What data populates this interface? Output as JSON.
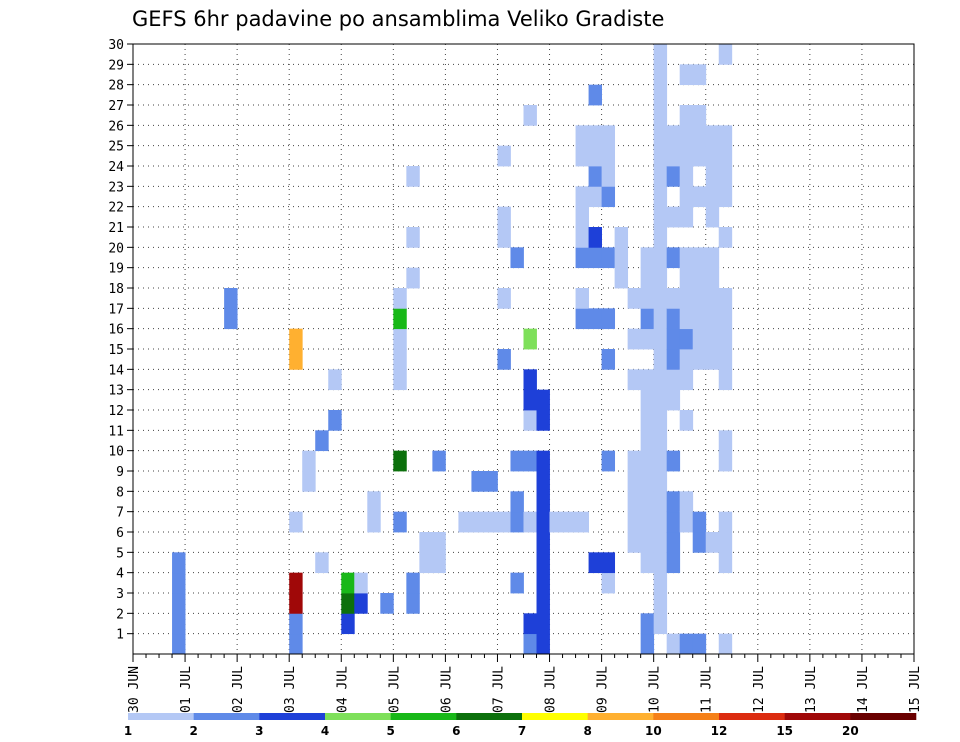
{
  "chart_data": {
    "type": "heatmap",
    "title": "GEFS 6hr padavine po ansamblima Veliko Gradiste",
    "xlabel": "",
    "ylabel": "",
    "x_tick_labels": [
      "30 JUN",
      "01 JUL",
      "02 JUL",
      "03 JUL",
      "04 JUL",
      "05 JUL",
      "06 JUL",
      "07 JUL",
      "08 JUL",
      "09 JUL",
      "10 JUL",
      "11 JUL",
      "12 JUL",
      "13 JUL",
      "14 JUL",
      "15 JUL"
    ],
    "y_tick_labels": [
      "1",
      "2",
      "3",
      "4",
      "5",
      "6",
      "7",
      "8",
      "9",
      "10",
      "11",
      "12",
      "13",
      "14",
      "15",
      "16",
      "17",
      "18",
      "19",
      "20",
      "21",
      "22",
      "23",
      "24",
      "25",
      "26",
      "27",
      "28",
      "29",
      "30"
    ],
    "x_range": [
      "30 JUN 00Z",
      "15 JUL 00Z"
    ],
    "time_step_hours": 6,
    "y_range": [
      0,
      30
    ],
    "grid": "dotted",
    "colorbar": {
      "labels": [
        "1",
        "2",
        "3",
        "4",
        "5",
        "6",
        "7",
        "8",
        "10",
        "12",
        "15",
        "20"
      ],
      "colors": [
        "#b4c8f5",
        "#5f8ae8",
        "#1e40d8",
        "#7ee05a",
        "#18b818",
        "#0c700c",
        "#ffff00",
        "#ffb030",
        "#f58018",
        "#dc2c10",
        "#a00808",
        "#6a0000"
      ]
    },
    "cell_value_note": "precipitation class per 6-hour step; value = colorbar class index (1-based)",
    "cells": [
      [
        3,
        0,
        2
      ],
      [
        3,
        1,
        2
      ],
      [
        3,
        2,
        2
      ],
      [
        3,
        3,
        2
      ],
      [
        3,
        4,
        2
      ],
      [
        7,
        16,
        2
      ],
      [
        7,
        17,
        2
      ],
      [
        12,
        0,
        2
      ],
      [
        12,
        1,
        2
      ],
      [
        12,
        2,
        11
      ],
      [
        12,
        3,
        11
      ],
      [
        12,
        6,
        1
      ],
      [
        12,
        14,
        8
      ],
      [
        12,
        15,
        8
      ],
      [
        13,
        8,
        1
      ],
      [
        13,
        9,
        1
      ],
      [
        14,
        4,
        1
      ],
      [
        14,
        10,
        2
      ],
      [
        15,
        11,
        2
      ],
      [
        15,
        13,
        1
      ],
      [
        16,
        1,
        3
      ],
      [
        16,
        2,
        6
      ],
      [
        16,
        3,
        5
      ],
      [
        17,
        2,
        3
      ],
      [
        17,
        3,
        1
      ],
      [
        18,
        6,
        1
      ],
      [
        18,
        7,
        1
      ],
      [
        19,
        2,
        2
      ],
      [
        20,
        6,
        2
      ],
      [
        20,
        9,
        6
      ],
      [
        20,
        13,
        1
      ],
      [
        20,
        14,
        1
      ],
      [
        20,
        15,
        1
      ],
      [
        20,
        16,
        5
      ],
      [
        20,
        17,
        1
      ],
      [
        21,
        2,
        2
      ],
      [
        21,
        3,
        2
      ],
      [
        21,
        18,
        1
      ],
      [
        21,
        20,
        1
      ],
      [
        21,
        23,
        1
      ],
      [
        22,
        4,
        1
      ],
      [
        22,
        5,
        1
      ],
      [
        23,
        4,
        1
      ],
      [
        23,
        5,
        1
      ],
      [
        23,
        9,
        2
      ],
      [
        25,
        6,
        1
      ],
      [
        26,
        6,
        1
      ],
      [
        26,
        8,
        2
      ],
      [
        27,
        6,
        1
      ],
      [
        27,
        8,
        2
      ],
      [
        28,
        6,
        1
      ],
      [
        28,
        14,
        2
      ],
      [
        28,
        17,
        1
      ],
      [
        28,
        20,
        1
      ],
      [
        28,
        21,
        1
      ],
      [
        28,
        24,
        1
      ],
      [
        29,
        3,
        2
      ],
      [
        29,
        6,
        2
      ],
      [
        29,
        7,
        2
      ],
      [
        29,
        9,
        2
      ],
      [
        29,
        19,
        2
      ],
      [
        30,
        0,
        2
      ],
      [
        30,
        1,
        3
      ],
      [
        30,
        6,
        1
      ],
      [
        30,
        9,
        2
      ],
      [
        30,
        11,
        1
      ],
      [
        30,
        12,
        3
      ],
      [
        30,
        13,
        3
      ],
      [
        30,
        15,
        4
      ],
      [
        30,
        26,
        1
      ],
      [
        31,
        0,
        3
      ],
      [
        31,
        1,
        3
      ],
      [
        31,
        2,
        3
      ],
      [
        31,
        3,
        3
      ],
      [
        31,
        4,
        3
      ],
      [
        31,
        5,
        3
      ],
      [
        31,
        6,
        3
      ],
      [
        31,
        7,
        3
      ],
      [
        31,
        8,
        3
      ],
      [
        31,
        9,
        3
      ],
      [
        31,
        11,
        3
      ],
      [
        31,
        12,
        3
      ],
      [
        32,
        6,
        1
      ],
      [
        33,
        6,
        1
      ],
      [
        34,
        6,
        1
      ],
      [
        34,
        16,
        2
      ],
      [
        34,
        17,
        1
      ],
      [
        34,
        19,
        2
      ],
      [
        34,
        20,
        1
      ],
      [
        34,
        21,
        1
      ],
      [
        34,
        22,
        1
      ],
      [
        34,
        24,
        1
      ],
      [
        34,
        25,
        1
      ],
      [
        35,
        4,
        3
      ],
      [
        35,
        16,
        2
      ],
      [
        35,
        19,
        2
      ],
      [
        35,
        20,
        3
      ],
      [
        35,
        22,
        1
      ],
      [
        35,
        23,
        2
      ],
      [
        35,
        24,
        1
      ],
      [
        35,
        25,
        1
      ],
      [
        35,
        27,
        2
      ],
      [
        36,
        3,
        1
      ],
      [
        36,
        4,
        3
      ],
      [
        36,
        9,
        2
      ],
      [
        36,
        14,
        2
      ],
      [
        36,
        16,
        2
      ],
      [
        36,
        19,
        2
      ],
      [
        36,
        22,
        2
      ],
      [
        36,
        23,
        1
      ],
      [
        36,
        24,
        1
      ],
      [
        36,
        25,
        1
      ],
      [
        37,
        18,
        1
      ],
      [
        37,
        19,
        1
      ],
      [
        37,
        20,
        1
      ],
      [
        38,
        5,
        1
      ],
      [
        38,
        6,
        1
      ],
      [
        38,
        7,
        1
      ],
      [
        38,
        8,
        1
      ],
      [
        38,
        9,
        1
      ],
      [
        38,
        13,
        1
      ],
      [
        38,
        15,
        1
      ],
      [
        38,
        17,
        1
      ],
      [
        39,
        0,
        2
      ],
      [
        39,
        1,
        2
      ],
      [
        39,
        4,
        1
      ],
      [
        39,
        5,
        1
      ],
      [
        39,
        6,
        1
      ],
      [
        39,
        7,
        1
      ],
      [
        39,
        8,
        1
      ],
      [
        39,
        9,
        1
      ],
      [
        39,
        10,
        1
      ],
      [
        39,
        11,
        1
      ],
      [
        39,
        12,
        1
      ],
      [
        39,
        13,
        1
      ],
      [
        39,
        15,
        1
      ],
      [
        39,
        16,
        2
      ],
      [
        39,
        17,
        1
      ],
      [
        39,
        18,
        1
      ],
      [
        39,
        19,
        1
      ],
      [
        40,
        1,
        1
      ],
      [
        40,
        2,
        1
      ],
      [
        40,
        3,
        1
      ],
      [
        40,
        4,
        1
      ],
      [
        40,
        5,
        1
      ],
      [
        40,
        6,
        1
      ],
      [
        40,
        7,
        1
      ],
      [
        40,
        8,
        1
      ],
      [
        40,
        9,
        1
      ],
      [
        40,
        10,
        1
      ],
      [
        40,
        11,
        1
      ],
      [
        40,
        12,
        1
      ],
      [
        40,
        13,
        1
      ],
      [
        40,
        14,
        1
      ],
      [
        40,
        15,
        1
      ],
      [
        40,
        16,
        1
      ],
      [
        40,
        17,
        1
      ],
      [
        40,
        18,
        1
      ],
      [
        40,
        19,
        1
      ],
      [
        40,
        20,
        1
      ],
      [
        40,
        21,
        1
      ],
      [
        40,
        22,
        1
      ],
      [
        40,
        23,
        1
      ],
      [
        40,
        24,
        1
      ],
      [
        40,
        25,
        1
      ],
      [
        40,
        26,
        1
      ],
      [
        40,
        27,
        1
      ],
      [
        40,
        28,
        1
      ],
      [
        40,
        29,
        1
      ],
      [
        41,
        0,
        1
      ],
      [
        41,
        4,
        2
      ],
      [
        41,
        5,
        2
      ],
      [
        41,
        6,
        2
      ],
      [
        41,
        7,
        2
      ],
      [
        41,
        9,
        2
      ],
      [
        41,
        12,
        1
      ],
      [
        41,
        13,
        1
      ],
      [
        41,
        14,
        2
      ],
      [
        41,
        15,
        2
      ],
      [
        41,
        16,
        2
      ],
      [
        41,
        17,
        1
      ],
      [
        41,
        19,
        2
      ],
      [
        41,
        21,
        1
      ],
      [
        41,
        23,
        2
      ],
      [
        41,
        24,
        1
      ],
      [
        41,
        25,
        1
      ],
      [
        42,
        0,
        2
      ],
      [
        42,
        6,
        1
      ],
      [
        42,
        7,
        1
      ],
      [
        42,
        11,
        1
      ],
      [
        42,
        13,
        1
      ],
      [
        42,
        14,
        1
      ],
      [
        42,
        15,
        2
      ],
      [
        42,
        16,
        1
      ],
      [
        42,
        17,
        1
      ],
      [
        42,
        18,
        1
      ],
      [
        42,
        19,
        1
      ],
      [
        42,
        21,
        1
      ],
      [
        42,
        22,
        1
      ],
      [
        42,
        23,
        1
      ],
      [
        42,
        24,
        1
      ],
      [
        42,
        25,
        1
      ],
      [
        42,
        26,
        1
      ],
      [
        42,
        28,
        1
      ],
      [
        43,
        0,
        2
      ],
      [
        43,
        5,
        2
      ],
      [
        43,
        6,
        2
      ],
      [
        43,
        14,
        1
      ],
      [
        43,
        15,
        1
      ],
      [
        43,
        16,
        1
      ],
      [
        43,
        17,
        1
      ],
      [
        43,
        18,
        1
      ],
      [
        43,
        19,
        1
      ],
      [
        43,
        22,
        1
      ],
      [
        43,
        24,
        1
      ],
      [
        43,
        25,
        1
      ],
      [
        43,
        26,
        1
      ],
      [
        43,
        28,
        1
      ],
      [
        44,
        5,
        1
      ],
      [
        44,
        14,
        1
      ],
      [
        44,
        15,
        1
      ],
      [
        44,
        16,
        1
      ],
      [
        44,
        17,
        1
      ],
      [
        44,
        18,
        1
      ],
      [
        44,
        19,
        1
      ],
      [
        44,
        21,
        1
      ],
      [
        44,
        22,
        1
      ],
      [
        44,
        23,
        1
      ],
      [
        44,
        24,
        1
      ],
      [
        44,
        25,
        1
      ],
      [
        45,
        0,
        1
      ],
      [
        45,
        4,
        1
      ],
      [
        45,
        5,
        1
      ],
      [
        45,
        6,
        1
      ],
      [
        45,
        9,
        1
      ],
      [
        45,
        10,
        1
      ],
      [
        45,
        13,
        1
      ],
      [
        45,
        14,
        1
      ],
      [
        45,
        15,
        1
      ],
      [
        45,
        16,
        1
      ],
      [
        45,
        17,
        1
      ],
      [
        45,
        20,
        1
      ],
      [
        45,
        22,
        1
      ],
      [
        45,
        23,
        1
      ],
      [
        45,
        24,
        1
      ],
      [
        45,
        25,
        1
      ],
      [
        45,
        29,
        1
      ]
    ]
  }
}
